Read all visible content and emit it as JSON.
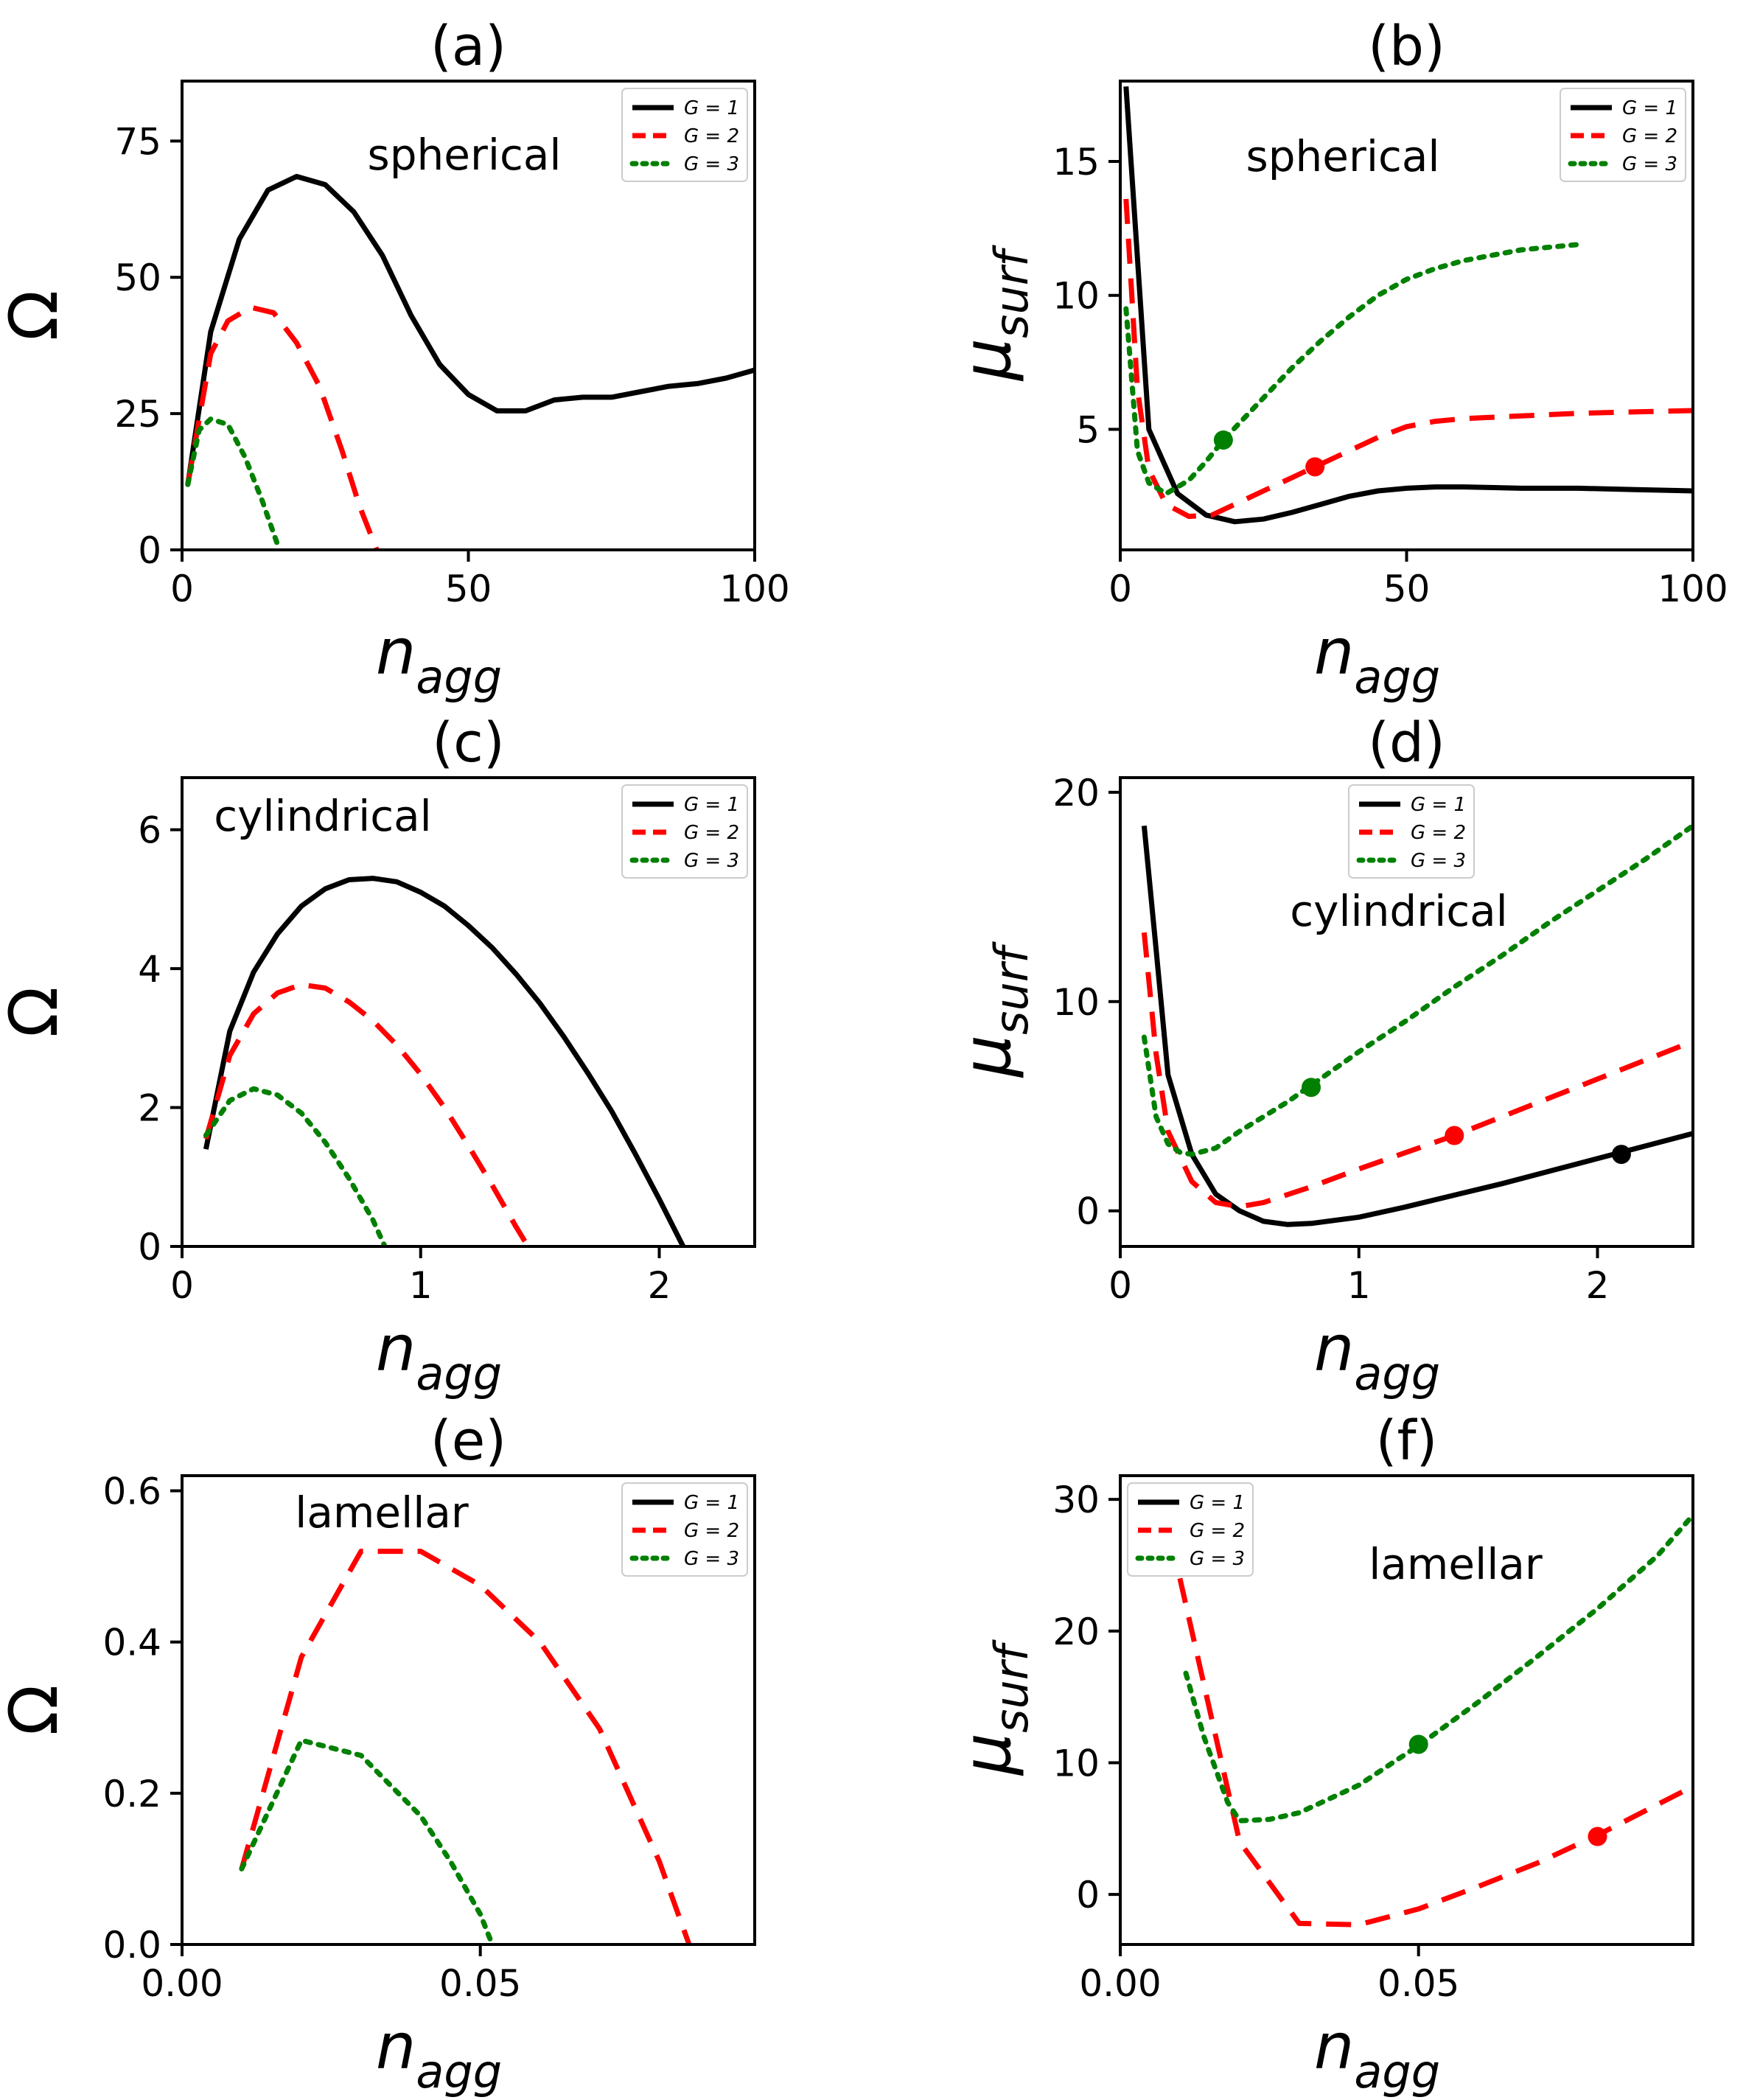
{
  "colors": {
    "G1": "#000000",
    "G2": "#ff0000",
    "G3": "#008000"
  },
  "chart_data": [
    {
      "type": "line",
      "title": "(a)",
      "annotation": "spherical",
      "xlabel": "n",
      "xlabel_sub": "agg",
      "ylabel": "Ω",
      "ylabel_sub": "",
      "xlim": [
        0,
        100
      ],
      "ylim": [
        0,
        86
      ],
      "xticks": [
        0,
        50,
        100
      ],
      "xtick_labels": [
        "0",
        "50",
        "100"
      ],
      "yticks": [
        0,
        25,
        50,
        75
      ],
      "ytick_labels": [
        "0",
        "25",
        "50",
        "75"
      ],
      "legend": [
        "G = 1",
        "G = 2",
        "G = 3"
      ],
      "series": [
        {
          "name": "G = 1",
          "x": [
            1,
            5,
            10,
            15,
            20,
            25,
            30,
            35,
            40,
            45,
            50,
            55,
            60,
            65,
            70,
            75,
            80,
            85,
            90,
            95,
            100
          ],
          "y": [
            12,
            40,
            57,
            66,
            68.5,
            67,
            62,
            54,
            43,
            34,
            28.5,
            25.5,
            25.5,
            27.5,
            28,
            28,
            29,
            30,
            30.5,
            31.5,
            33
          ]
        },
        {
          "name": "G = 2",
          "x": [
            1,
            5,
            8,
            12,
            16,
            20,
            24,
            28,
            31,
            34
          ],
          "y": [
            12,
            36,
            42,
            44.5,
            43.5,
            38,
            30,
            18,
            8,
            0
          ]
        },
        {
          "name": "G = 3",
          "x": [
            1,
            3,
            5,
            8,
            11,
            14,
            17
          ],
          "y": [
            12,
            22,
            24,
            23,
            17,
            9,
            0
          ]
        }
      ],
      "markers": []
    },
    {
      "type": "line",
      "title": "(b)",
      "annotation": "spherical",
      "xlabel": "n",
      "xlabel_sub": "agg",
      "ylabel": "μ",
      "ylabel_sub": "surf",
      "xlim": [
        0,
        100
      ],
      "ylim": [
        0.5,
        18
      ],
      "xticks": [
        0,
        50,
        100
      ],
      "xtick_labels": [
        "0",
        "50",
        "100"
      ],
      "yticks": [
        5,
        10,
        15
      ],
      "ytick_labels": [
        "5",
        "10",
        "15"
      ],
      "legend": [
        "G = 1",
        "G = 2",
        "G = 3"
      ],
      "series": [
        {
          "name": "G = 1",
          "x": [
            1,
            5,
            10,
            15,
            20,
            25,
            30,
            35,
            40,
            45,
            50,
            55,
            60,
            70,
            80,
            90,
            100
          ],
          "y": [
            17.8,
            5,
            2.6,
            1.8,
            1.55,
            1.65,
            1.9,
            2.2,
            2.5,
            2.7,
            2.8,
            2.85,
            2.85,
            2.8,
            2.8,
            2.75,
            2.7
          ]
        },
        {
          "name": "G = 2",
          "x": [
            1,
            3,
            5,
            8,
            12,
            16,
            20,
            25,
            30,
            34,
            40,
            45,
            50,
            55,
            60,
            70,
            80,
            90,
            100
          ],
          "y": [
            13.6,
            6.5,
            3.5,
            2.2,
            1.75,
            1.8,
            2.2,
            2.7,
            3.2,
            3.6,
            4.2,
            4.7,
            5.1,
            5.3,
            5.4,
            5.5,
            5.6,
            5.65,
            5.7
          ]
        },
        {
          "name": "G = 3",
          "x": [
            1,
            3,
            5,
            8,
            12,
            15,
            18,
            22,
            26,
            30,
            35,
            40,
            45,
            50,
            55,
            60,
            65,
            70,
            75,
            80
          ],
          "y": [
            9.5,
            4.2,
            3,
            2.6,
            3.1,
            3.8,
            4.6,
            5.5,
            6.4,
            7.3,
            8.3,
            9.2,
            10,
            10.6,
            11,
            11.3,
            11.5,
            11.7,
            11.8,
            11.9
          ]
        }
      ],
      "markers": [
        {
          "series": "G = 2",
          "x": 34,
          "y": 3.6
        },
        {
          "series": "G = 3",
          "x": 18,
          "y": 4.6
        }
      ]
    },
    {
      "type": "line",
      "title": "(c)",
      "annotation": "cylindrical",
      "xlabel": "n",
      "xlabel_sub": "agg",
      "ylabel": "Ω",
      "ylabel_sub": "",
      "xlim": [
        0,
        2.4
      ],
      "ylim": [
        0,
        6.75
      ],
      "xticks": [
        0,
        1,
        2
      ],
      "xtick_labels": [
        "0",
        "1",
        "2"
      ],
      "yticks": [
        0,
        2,
        4,
        6
      ],
      "ytick_labels": [
        "0",
        "2",
        "4",
        "6"
      ],
      "legend": [
        "G = 1",
        "G = 2",
        "G = 3"
      ],
      "series": [
        {
          "name": "G = 1",
          "x": [
            0.1,
            0.2,
            0.3,
            0.4,
            0.5,
            0.6,
            0.7,
            0.8,
            0.9,
            1.0,
            1.1,
            1.2,
            1.3,
            1.4,
            1.5,
            1.6,
            1.7,
            1.8,
            1.9,
            2.0,
            2.1
          ],
          "y": [
            1.4,
            3.1,
            3.95,
            4.5,
            4.9,
            5.15,
            5.28,
            5.3,
            5.25,
            5.1,
            4.9,
            4.62,
            4.3,
            3.92,
            3.5,
            3.02,
            2.5,
            1.95,
            1.33,
            0.68,
            0
          ]
        },
        {
          "name": "G = 2",
          "x": [
            0.1,
            0.2,
            0.3,
            0.4,
            0.5,
            0.6,
            0.7,
            0.8,
            0.9,
            1.0,
            1.1,
            1.2,
            1.3,
            1.4,
            1.45
          ],
          "y": [
            1.55,
            2.75,
            3.35,
            3.65,
            3.77,
            3.72,
            3.52,
            3.25,
            2.9,
            2.48,
            2.0,
            1.45,
            0.88,
            0.28,
            0
          ]
        },
        {
          "name": "G = 3",
          "x": [
            0.1,
            0.2,
            0.3,
            0.4,
            0.5,
            0.6,
            0.7,
            0.8,
            0.85
          ],
          "y": [
            1.6,
            2.1,
            2.27,
            2.18,
            1.92,
            1.5,
            0.98,
            0.38,
            0
          ]
        }
      ],
      "markers": []
    },
    {
      "type": "line",
      "title": "(d)",
      "annotation": "cylindrical",
      "xlabel": "n",
      "xlabel_sub": "agg",
      "ylabel": "μ",
      "ylabel_sub": "surf",
      "xlim": [
        0,
        2.4
      ],
      "ylim": [
        -1.7,
        20.7
      ],
      "xticks": [
        0,
        1,
        2
      ],
      "xtick_labels": [
        "0",
        "1",
        "2"
      ],
      "yticks": [
        0,
        10,
        20
      ],
      "ytick_labels": [
        "0",
        "10",
        "20"
      ],
      "legend": [
        "G = 1",
        "G = 2",
        "G = 3"
      ],
      "series": [
        {
          "name": "G = 1",
          "x": [
            0.1,
            0.15,
            0.2,
            0.3,
            0.4,
            0.5,
            0.6,
            0.7,
            0.8,
            1.0,
            1.2,
            1.4,
            1.6,
            1.8,
            2.0,
            2.2,
            2.4
          ],
          "y": [
            18.4,
            12.5,
            6.5,
            2.7,
            0.8,
            0,
            -0.5,
            -0.65,
            -0.6,
            -0.3,
            0.2,
            0.75,
            1.3,
            1.9,
            2.5,
            3.1,
            3.7
          ]
        },
        {
          "name": "G = 2",
          "x": [
            0.1,
            0.15,
            0.2,
            0.3,
            0.4,
            0.5,
            0.6,
            0.8,
            1.0,
            1.2,
            1.4,
            1.6,
            1.8,
            2.0,
            2.2,
            2.4
          ],
          "y": [
            13.3,
            7.5,
            3.8,
            1.4,
            0.4,
            0.2,
            0.4,
            1.15,
            2.0,
            2.8,
            3.6,
            4.5,
            5.4,
            6.3,
            7.2,
            8.1
          ]
        },
        {
          "name": "G = 3",
          "x": [
            0.1,
            0.15,
            0.2,
            0.25,
            0.3,
            0.4,
            0.5,
            0.6,
            0.7,
            0.8,
            1.0,
            1.2,
            1.4,
            1.6,
            1.8,
            2.0,
            2.2,
            2.4
          ],
          "y": [
            8.3,
            4.5,
            3.2,
            2.8,
            2.7,
            3.0,
            3.8,
            4.5,
            5.2,
            6.0,
            7.6,
            9.1,
            10.7,
            12.2,
            13.8,
            15.3,
            16.8,
            18.4
          ]
        }
      ],
      "markers": [
        {
          "series": "G = 1",
          "x": 2.1,
          "y": 2.7
        },
        {
          "series": "G = 2",
          "x": 1.4,
          "y": 3.6
        },
        {
          "series": "G = 3",
          "x": 0.8,
          "y": 5.9
        }
      ]
    },
    {
      "type": "line",
      "title": "(e)",
      "annotation": "lamellar",
      "xlabel": "n",
      "xlabel_sub": "agg",
      "ylabel": "Ω",
      "ylabel_sub": "",
      "xlim": [
        0,
        0.096
      ],
      "ylim": [
        0,
        0.62
      ],
      "xticks": [
        0,
        0.05
      ],
      "xtick_labels": [
        "0.00",
        "0.05"
      ],
      "yticks": [
        0,
        0.2,
        0.4,
        0.6
      ],
      "ytick_labels": [
        "0.0",
        "0.2",
        "0.4",
        "0.6"
      ],
      "legend": [
        "G = 1",
        "G = 2",
        "G = 3"
      ],
      "series": [
        {
          "name": "G = 1",
          "x": [],
          "y": []
        },
        {
          "name": "G = 2",
          "x": [
            0.01,
            0.02,
            0.03,
            0.04,
            0.05,
            0.06,
            0.07,
            0.08,
            0.085
          ],
          "y": [
            0.1,
            0.38,
            0.52,
            0.52,
            0.475,
            0.4,
            0.285,
            0.11,
            0
          ]
        },
        {
          "name": "G = 3",
          "x": [
            0.01,
            0.02,
            0.03,
            0.04,
            0.045,
            0.05,
            0.052
          ],
          "y": [
            0.1,
            0.27,
            0.25,
            0.17,
            0.11,
            0.04,
            0
          ]
        }
      ],
      "markers": []
    },
    {
      "type": "line",
      "title": "(f)",
      "annotation": "lamellar",
      "xlabel": "n",
      "xlabel_sub": "agg",
      "ylabel": "μ",
      "ylabel_sub": "surf",
      "xlim": [
        0,
        0.096
      ],
      "ylim": [
        -3.8,
        31.8
      ],
      "xticks": [
        0,
        0.05
      ],
      "xtick_labels": [
        "0.00",
        "0.05"
      ],
      "yticks": [
        0,
        10,
        20,
        30
      ],
      "ytick_labels": [
        "0",
        "10",
        "20",
        "30"
      ],
      "legend": [
        "G = 1",
        "G = 2",
        "G = 3"
      ],
      "series": [
        {
          "name": "G = 1",
          "x": [],
          "y": []
        },
        {
          "name": "G = 2",
          "x": [
            0.01,
            0.02,
            0.03,
            0.04,
            0.05,
            0.06,
            0.07,
            0.08,
            0.096
          ],
          "y": [
            24,
            4,
            -2.2,
            -2.3,
            -1.1,
            0.6,
            2.4,
            4.5,
            8.2
          ]
        },
        {
          "name": "G = 3",
          "x": [
            0.011,
            0.014,
            0.018,
            0.02,
            0.025,
            0.03,
            0.04,
            0.05,
            0.06,
            0.07,
            0.08,
            0.09,
            0.096
          ],
          "y": [
            16.8,
            12,
            7,
            5.6,
            5.7,
            6.2,
            8.3,
            11.3,
            14.6,
            18.1,
            21.7,
            25.7,
            28.8
          ]
        }
      ],
      "markers": [
        {
          "series": "G = 2",
          "x": 0.08,
          "y": 4.4
        },
        {
          "series": "G = 3",
          "x": 0.05,
          "y": 11.4
        }
      ]
    }
  ]
}
